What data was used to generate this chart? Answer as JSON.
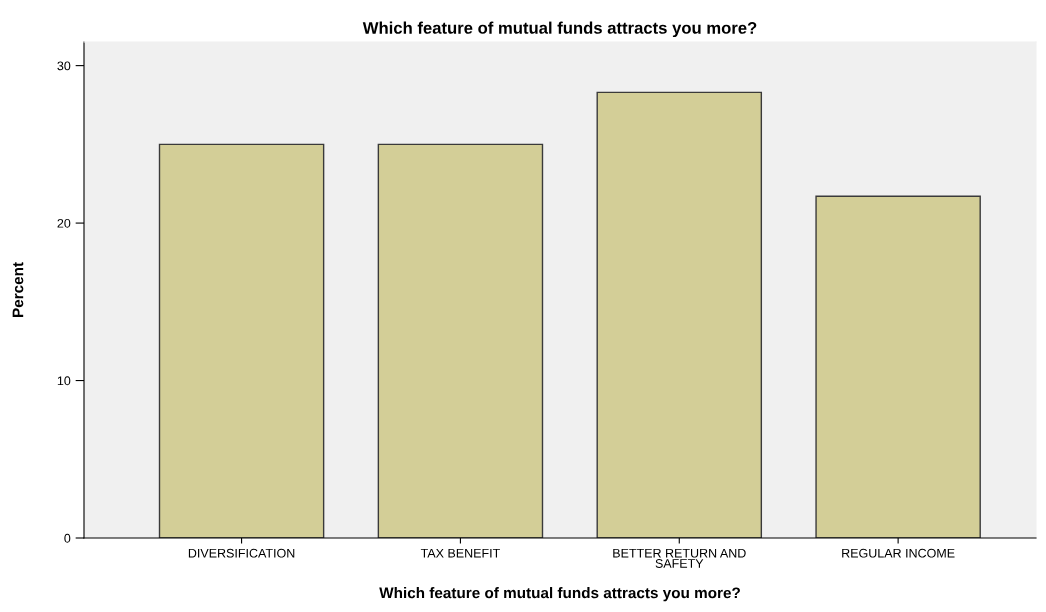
{
  "chart_data": {
    "type": "bar",
    "title": "Which feature of mutual funds attracts you more?",
    "xlabel": "Which feature of mutual funds attracts you more?",
    "ylabel": "Percent",
    "categories": [
      "DIVERSIFICATION",
      "TAX BENEFIT",
      "BETTER RETURN AND\nSAFETY",
      "REGULAR INCOME"
    ],
    "values": [
      25,
      25,
      28.3,
      21.7
    ],
    "color": "#d3ce97",
    "ylim": [
      0,
      31.5
    ],
    "yticks": [
      0,
      10,
      20,
      30
    ],
    "grid": false,
    "legend": false
  }
}
